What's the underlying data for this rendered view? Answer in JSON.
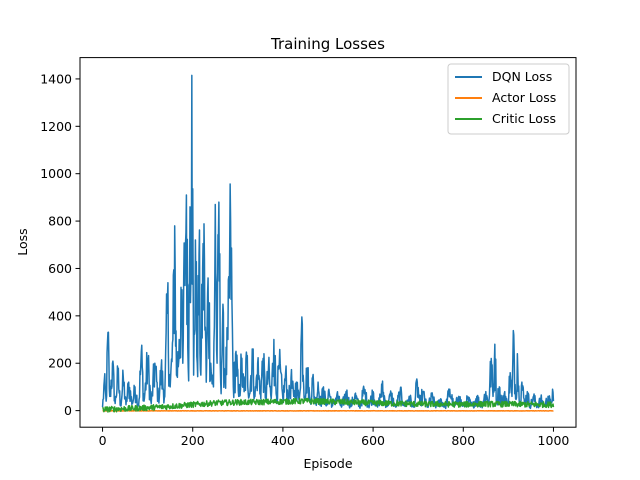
{
  "chart_data": {
    "type": "line",
    "title": "Training Losses",
    "xlabel": "Episode",
    "ylabel": "Loss",
    "xlim": [
      -50,
      1050
    ],
    "ylim": [
      -70,
      1490
    ],
    "xticks": [
      0,
      200,
      400,
      600,
      800,
      1000
    ],
    "yticks": [
      0,
      200,
      400,
      600,
      800,
      1000,
      1200,
      1400
    ],
    "grid": false,
    "legend_position": "top-right",
    "series": [
      {
        "name": "DQN Loss",
        "color": "#1f77b4",
        "keypoints": [
          [
            0,
            15
          ],
          [
            4,
            130
          ],
          [
            8,
            40
          ],
          [
            12,
            330
          ],
          [
            16,
            60
          ],
          [
            22,
            200
          ],
          [
            28,
            30
          ],
          [
            34,
            160
          ],
          [
            40,
            20
          ],
          [
            46,
            140
          ],
          [
            52,
            25
          ],
          [
            58,
            120
          ],
          [
            66,
            30
          ],
          [
            72,
            100
          ],
          [
            80,
            20
          ],
          [
            86,
            250
          ],
          [
            92,
            40
          ],
          [
            100,
            220
          ],
          [
            108,
            30
          ],
          [
            116,
            200
          ],
          [
            124,
            50
          ],
          [
            130,
            180
          ],
          [
            138,
            60
          ],
          [
            144,
            480
          ],
          [
            150,
            100
          ],
          [
            156,
            300
          ],
          [
            160,
            780
          ],
          [
            164,
            150
          ],
          [
            170,
            300
          ],
          [
            174,
            520
          ],
          [
            178,
            200
          ],
          [
            182,
            700
          ],
          [
            186,
            910
          ],
          [
            190,
            180
          ],
          [
            194,
            860
          ],
          [
            198,
            1415
          ],
          [
            202,
            150
          ],
          [
            206,
            720
          ],
          [
            210,
            200
          ],
          [
            214,
            660
          ],
          [
            218,
            150
          ],
          [
            222,
            600
          ],
          [
            226,
            640
          ],
          [
            230,
            120
          ],
          [
            234,
            560
          ],
          [
            240,
            200
          ],
          [
            246,
            100
          ],
          [
            250,
            870
          ],
          [
            254,
            200
          ],
          [
            258,
            880
          ],
          [
            262,
            120
          ],
          [
            266,
            360
          ],
          [
            272,
            150
          ],
          [
            278,
            300
          ],
          [
            284,
            800
          ],
          [
            290,
            100
          ],
          [
            296,
            250
          ],
          [
            302,
            60
          ],
          [
            308,
            200
          ],
          [
            314,
            80
          ],
          [
            320,
            220
          ],
          [
            326,
            70
          ],
          [
            332,
            260
          ],
          [
            338,
            60
          ],
          [
            344,
            200
          ],
          [
            350,
            80
          ],
          [
            356,
            220
          ],
          [
            362,
            60
          ],
          [
            368,
            180
          ],
          [
            374,
            50
          ],
          [
            380,
            300
          ],
          [
            386,
            60
          ],
          [
            392,
            200
          ],
          [
            400,
            50
          ],
          [
            406,
            160
          ],
          [
            412,
            40
          ],
          [
            418,
            140
          ],
          [
            424,
            60
          ],
          [
            430,
            120
          ],
          [
            436,
            40
          ],
          [
            442,
            395
          ],
          [
            448,
            60
          ],
          [
            454,
            180
          ],
          [
            460,
            40
          ],
          [
            466,
            140
          ],
          [
            472,
            30
          ],
          [
            478,
            120
          ],
          [
            484,
            30
          ],
          [
            490,
            100
          ],
          [
            496,
            20
          ],
          [
            502,
            90
          ],
          [
            510,
            20
          ],
          [
            520,
            70
          ],
          [
            530,
            15
          ],
          [
            540,
            80
          ],
          [
            550,
            20
          ],
          [
            560,
            70
          ],
          [
            570,
            15
          ],
          [
            580,
            90
          ],
          [
            590,
            20
          ],
          [
            600,
            80
          ],
          [
            610,
            15
          ],
          [
            620,
            100
          ],
          [
            630,
            20
          ],
          [
            640,
            70
          ],
          [
            650,
            15
          ],
          [
            660,
            80
          ],
          [
            670,
            20
          ],
          [
            680,
            60
          ],
          [
            690,
            15
          ],
          [
            698,
            120
          ],
          [
            704,
            30
          ],
          [
            710,
            80
          ],
          [
            720,
            15
          ],
          [
            730,
            60
          ],
          [
            740,
            20
          ],
          [
            750,
            50
          ],
          [
            760,
            15
          ],
          [
            770,
            90
          ],
          [
            780,
            15
          ],
          [
            790,
            60
          ],
          [
            800,
            20
          ],
          [
            810,
            50
          ],
          [
            820,
            20
          ],
          [
            830,
            60
          ],
          [
            840,
            20
          ],
          [
            850,
            80
          ],
          [
            856,
            30
          ],
          [
            862,
            220
          ],
          [
            866,
            60
          ],
          [
            870,
            280
          ],
          [
            874,
            40
          ],
          [
            880,
            100
          ],
          [
            886,
            30
          ],
          [
            892,
            80
          ],
          [
            898,
            20
          ],
          [
            904,
            160
          ],
          [
            908,
            60
          ],
          [
            912,
            320
          ],
          [
            916,
            50
          ],
          [
            920,
            240
          ],
          [
            924,
            40
          ],
          [
            930,
            120
          ],
          [
            936,
            30
          ],
          [
            942,
            80
          ],
          [
            948,
            20
          ],
          [
            956,
            60
          ],
          [
            964,
            20
          ],
          [
            972,
            50
          ],
          [
            980,
            20
          ],
          [
            988,
            60
          ],
          [
            994,
            30
          ],
          [
            998,
            90
          ],
          [
            1000,
            40
          ]
        ]
      },
      {
        "name": "Actor Loss",
        "color": "#ff7f0e",
        "keypoints": [
          [
            0,
            -1
          ],
          [
            200,
            -1
          ],
          [
            400,
            -1
          ],
          [
            600,
            -1
          ],
          [
            800,
            -1
          ],
          [
            1000,
            -1
          ]
        ]
      },
      {
        "name": "Critic Loss",
        "color": "#2ca02c",
        "keypoints": [
          [
            0,
            5
          ],
          [
            50,
            8
          ],
          [
            100,
            12
          ],
          [
            150,
            18
          ],
          [
            200,
            25
          ],
          [
            250,
            32
          ],
          [
            300,
            35
          ],
          [
            350,
            36
          ],
          [
            400,
            38
          ],
          [
            450,
            40
          ],
          [
            500,
            38
          ],
          [
            550,
            35
          ],
          [
            600,
            32
          ],
          [
            650,
            30
          ],
          [
            700,
            28
          ],
          [
            750,
            27
          ],
          [
            800,
            26
          ],
          [
            850,
            28
          ],
          [
            900,
            27
          ],
          [
            950,
            26
          ],
          [
            1000,
            25
          ]
        ]
      }
    ]
  }
}
